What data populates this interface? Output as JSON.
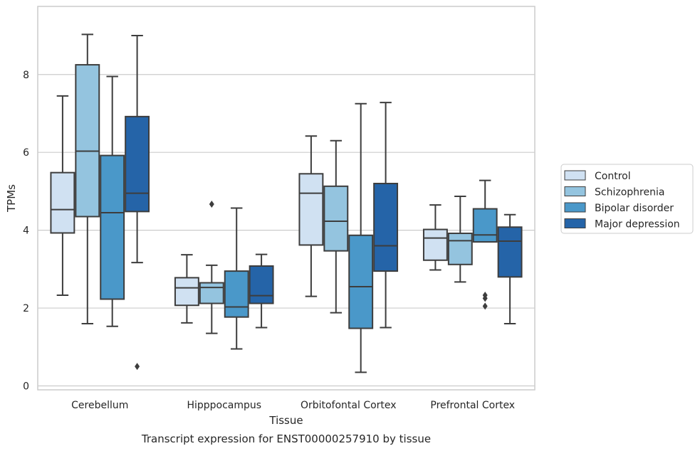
{
  "chart_data": {
    "type": "boxplot",
    "title": "",
    "caption": "Transcript expression for ENST00000257910 by tissue",
    "xlabel": "Tissue",
    "ylabel": "TPMs",
    "ylim": [
      -0.1,
      9.75
    ],
    "yticks": [
      0,
      2,
      4,
      6,
      8
    ],
    "grid": "y",
    "legend_position": "right",
    "categories": [
      "Cerebellum",
      "Hipppocampus",
      "Orbitofontal Cortex",
      "Prefrontal Cortex"
    ],
    "colors": [
      "#d0e1f2",
      "#94c4df",
      "#4a98c9",
      "#2564a8"
    ],
    "series": [
      {
        "name": "Control",
        "boxes": [
          {
            "whislo": 2.33,
            "q1": 3.93,
            "med": 4.53,
            "q3": 5.48,
            "whishi": 7.45,
            "fliers": []
          },
          {
            "whislo": 1.62,
            "q1": 2.07,
            "med": 2.52,
            "q3": 2.78,
            "whishi": 3.37,
            "fliers": []
          },
          {
            "whislo": 2.3,
            "q1": 3.62,
            "med": 4.95,
            "q3": 5.45,
            "whishi": 6.42,
            "fliers": []
          },
          {
            "whislo": 2.98,
            "q1": 3.23,
            "med": 3.8,
            "q3": 4.02,
            "whishi": 4.65,
            "fliers": []
          }
        ]
      },
      {
        "name": "Schizophrenia",
        "boxes": [
          {
            "whislo": 1.6,
            "q1": 4.35,
            "med": 6.03,
            "q3": 8.25,
            "whishi": 9.03,
            "fliers": []
          },
          {
            "whislo": 1.35,
            "q1": 2.12,
            "med": 2.53,
            "q3": 2.65,
            "whishi": 3.1,
            "fliers": [
              4.67
            ]
          },
          {
            "whislo": 1.88,
            "q1": 3.47,
            "med": 4.23,
            "q3": 5.13,
            "whishi": 6.3,
            "fliers": []
          },
          {
            "whislo": 2.67,
            "q1": 3.12,
            "med": 3.73,
            "q3": 3.92,
            "whishi": 4.87,
            "fliers": []
          }
        ]
      },
      {
        "name": "Bipolar disorder",
        "boxes": [
          {
            "whislo": 1.53,
            "q1": 2.23,
            "med": 4.45,
            "q3": 5.92,
            "whishi": 7.95,
            "fliers": []
          },
          {
            "whislo": 0.95,
            "q1": 1.77,
            "med": 2.03,
            "q3": 2.95,
            "whishi": 4.57,
            "fliers": []
          },
          {
            "whislo": 0.35,
            "q1": 1.48,
            "med": 2.55,
            "q3": 3.87,
            "whishi": 7.25,
            "fliers": []
          },
          {
            "whislo": 3.7,
            "q1": 3.7,
            "med": 3.88,
            "q3": 4.55,
            "whishi": 5.28,
            "fliers": [
              2.05,
              2.25,
              2.33
            ]
          }
        ]
      },
      {
        "name": "Major depression",
        "boxes": [
          {
            "whislo": 3.17,
            "q1": 4.48,
            "med": 4.95,
            "q3": 6.92,
            "whishi": 9.0,
            "fliers": [
              0.5
            ]
          },
          {
            "whislo": 1.5,
            "q1": 2.12,
            "med": 2.32,
            "q3": 3.08,
            "whishi": 3.38,
            "fliers": []
          },
          {
            "whislo": 1.5,
            "q1": 2.95,
            "med": 3.6,
            "q3": 5.2,
            "whishi": 7.28,
            "fliers": []
          },
          {
            "whislo": 1.6,
            "q1": 2.8,
            "med": 3.72,
            "q3": 4.08,
            "whishi": 4.4,
            "fliers": []
          }
        ]
      }
    ]
  }
}
